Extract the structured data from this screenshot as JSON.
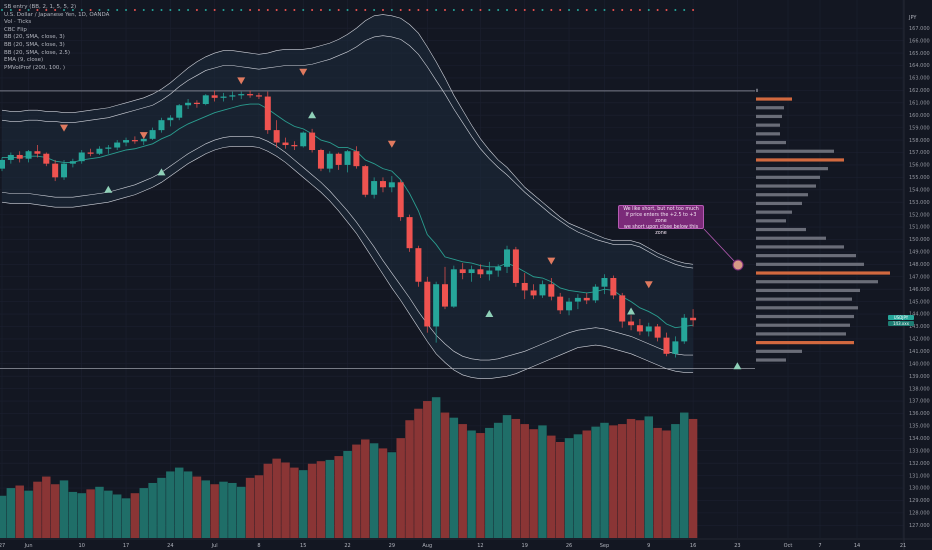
{
  "legend": {
    "line0": "SB entry (BB, 2, 1, 5, 5, 2)",
    "line1": "U.S. Dollar / Japanese Yen, 1D, OANDA",
    "line2": "Vol · Ticks",
    "line3": "CBC Flip",
    "line4": "BB (20, SMA, close, 3)",
    "line5": "BB (20, SMA, close, 3)",
    "line6": "BB (20, SMA, close, 2.5)",
    "line7": "EMA (9, close)",
    "line8": "PMVolProf (200, 100, )"
  },
  "annotation": {
    "line1": "We like short, but not too much",
    "line2": "If price enters the +2.5 to +3 zone",
    "line3": "we short upon close below this zone"
  },
  "axis": {
    "currency": "JPY",
    "y_ticks": [
      "167.000",
      "166.000",
      "165.000",
      "164.000",
      "163.000",
      "162.000",
      "161.000",
      "160.000",
      "159.000",
      "158.000",
      "157.000",
      "156.000",
      "155.000",
      "154.000",
      "153.000",
      "152.000",
      "151.000",
      "150.000",
      "149.000",
      "148.000",
      "147.000",
      "146.000",
      "145.000",
      "144.000",
      "143.000",
      "142.000",
      "141.000",
      "140.000",
      "139.000",
      "138.000",
      "137.000",
      "136.000",
      "135.000",
      "134.000",
      "133.000",
      "132.000",
      "131.000",
      "130.000",
      "129.000",
      "128.000",
      "127.000"
    ],
    "x_ticks": [
      {
        "label": "27",
        "i": 0
      },
      {
        "label": "Jun",
        "i": 3
      },
      {
        "label": "10",
        "i": 9
      },
      {
        "label": "17",
        "i": 14
      },
      {
        "label": "24",
        "i": 19
      },
      {
        "label": "Jul",
        "i": 24
      },
      {
        "label": "8",
        "i": 29
      },
      {
        "label": "15",
        "i": 34
      },
      {
        "label": "22",
        "i": 39
      },
      {
        "label": "29",
        "i": 44
      },
      {
        "label": "Aug",
        "i": 48
      },
      {
        "label": "12",
        "i": 54
      },
      {
        "label": "19",
        "i": 59
      },
      {
        "label": "26",
        "i": 64
      },
      {
        "label": "Sep",
        "i": 68
      },
      {
        "label": "9",
        "i": 73
      },
      {
        "label": "16",
        "i": 78
      },
      {
        "label": "23",
        "i": 83
      }
    ],
    "x_ticks_future": [
      "Oct",
      "7",
      "14",
      "21"
    ],
    "price_tag": "USDJPY",
    "price_value": "143.xxx"
  },
  "chart_data": {
    "type": "candlestick",
    "title": "U.S. Dollar / Japanese Yen, 1D, OANDA",
    "ylim": [
      126.3,
      167.5
    ],
    "colors": {
      "up": "#26a69a",
      "down": "#ef5350",
      "vol_up": "#1f6e68",
      "vol_down": "#8a3535",
      "band": "#d1d4dc",
      "ema": "#2a9d8f",
      "profile": "#6a6d78",
      "profile_hi": "#d2693f"
    },
    "candles": [
      [
        155.7,
        156.6,
        155.5,
        156.4
      ],
      [
        156.4,
        157.0,
        156.1,
        156.8
      ],
      [
        156.8,
        157.1,
        156.2,
        156.5
      ],
      [
        156.5,
        157.2,
        156.2,
        157.1
      ],
      [
        157.1,
        157.6,
        156.6,
        156.9
      ],
      [
        156.9,
        157.0,
        155.9,
        156.1
      ],
      [
        156.1,
        156.4,
        154.7,
        155.0
      ],
      [
        155.0,
        156.4,
        154.8,
        156.1
      ],
      [
        156.1,
        156.5,
        155.8,
        156.3
      ],
      [
        156.3,
        157.2,
        156.1,
        157.0
      ],
      [
        157.0,
        157.3,
        156.7,
        156.9
      ],
      [
        156.9,
        157.5,
        156.8,
        157.3
      ],
      [
        157.3,
        157.6,
        156.9,
        157.4
      ],
      [
        157.4,
        158.0,
        157.2,
        157.8
      ],
      [
        157.8,
        158.2,
        157.5,
        158.0
      ],
      [
        158.0,
        158.3,
        157.7,
        157.9
      ],
      [
        157.9,
        158.3,
        157.6,
        158.1
      ],
      [
        158.1,
        159.0,
        158.0,
        158.8
      ],
      [
        158.8,
        159.8,
        158.6,
        159.6
      ],
      [
        159.6,
        160.0,
        159.1,
        159.8
      ],
      [
        159.8,
        160.9,
        159.6,
        160.8
      ],
      [
        160.8,
        161.3,
        160.5,
        161.0
      ],
      [
        161.0,
        161.2,
        160.6,
        160.9
      ],
      [
        160.9,
        161.7,
        160.8,
        161.6
      ],
      [
        161.6,
        162.0,
        161.1,
        161.4
      ],
      [
        161.4,
        161.8,
        161.1,
        161.5
      ],
      [
        161.5,
        161.9,
        161.2,
        161.6
      ],
      [
        161.6,
        161.9,
        161.3,
        161.7
      ],
      [
        161.7,
        162.0,
        161.4,
        161.6
      ],
      [
        161.6,
        161.8,
        161.3,
        161.5
      ],
      [
        161.5,
        161.9,
        158.5,
        158.8
      ],
      [
        158.8,
        159.6,
        157.4,
        157.8
      ],
      [
        157.8,
        158.2,
        157.3,
        157.6
      ],
      [
        157.6,
        157.9,
        157.2,
        157.5
      ],
      [
        157.5,
        158.7,
        157.4,
        158.6
      ],
      [
        158.6,
        158.9,
        157.0,
        157.2
      ],
      [
        157.2,
        157.3,
        155.5,
        155.7
      ],
      [
        155.7,
        157.1,
        155.4,
        156.9
      ],
      [
        156.9,
        157.0,
        155.6,
        156.0
      ],
      [
        156.0,
        157.2,
        155.4,
        157.1
      ],
      [
        157.1,
        157.5,
        155.7,
        155.9
      ],
      [
        155.9,
        156.0,
        153.4,
        153.6
      ],
      [
        153.6,
        155.0,
        153.3,
        154.7
      ],
      [
        154.7,
        155.0,
        153.8,
        154.2
      ],
      [
        154.2,
        155.1,
        153.8,
        154.6
      ],
      [
        154.6,
        154.8,
        151.5,
        151.8
      ],
      [
        151.8,
        152.0,
        149.0,
        149.3
      ],
      [
        149.3,
        149.5,
        146.2,
        146.6
      ],
      [
        146.6,
        147.0,
        142.5,
        143.0
      ],
      [
        143.0,
        146.6,
        141.7,
        146.4
      ],
      [
        146.4,
        147.8,
        144.4,
        144.6
      ],
      [
        144.6,
        147.9,
        144.5,
        147.6
      ],
      [
        147.6,
        148.1,
        146.8,
        147.3
      ],
      [
        147.3,
        147.9,
        146.6,
        147.6
      ],
      [
        147.6,
        148.0,
        146.9,
        147.2
      ],
      [
        147.2,
        148.2,
        146.7,
        147.5
      ],
      [
        147.5,
        148.0,
        147.0,
        147.8
      ],
      [
        147.8,
        149.5,
        147.3,
        149.2
      ],
      [
        149.2,
        149.4,
        146.2,
        146.5
      ],
      [
        146.5,
        147.3,
        145.2,
        145.9
      ],
      [
        145.9,
        146.4,
        145.2,
        145.5
      ],
      [
        145.5,
        146.7,
        145.3,
        146.4
      ],
      [
        146.4,
        146.9,
        145.1,
        145.4
      ],
      [
        145.4,
        145.7,
        144.0,
        144.3
      ],
      [
        144.3,
        145.3,
        143.9,
        145.0
      ],
      [
        145.0,
        145.6,
        144.4,
        145.3
      ],
      [
        145.3,
        145.7,
        144.8,
        145.1
      ],
      [
        145.1,
        146.4,
        144.9,
        146.2
      ],
      [
        146.2,
        147.2,
        145.6,
        146.9
      ],
      [
        146.9,
        147.1,
        145.2,
        145.5
      ],
      [
        145.5,
        145.7,
        142.9,
        143.4
      ],
      [
        143.4,
        143.9,
        142.7,
        143.1
      ],
      [
        143.1,
        143.6,
        142.3,
        142.6
      ],
      [
        142.6,
        143.3,
        142.2,
        143.0
      ],
      [
        143.0,
        143.2,
        141.8,
        142.1
      ],
      [
        142.1,
        142.5,
        140.6,
        140.8
      ],
      [
        140.8,
        142.2,
        140.5,
        141.8
      ],
      [
        141.8,
        144.0,
        141.6,
        143.7
      ],
      [
        143.7,
        144.4,
        143.0,
        143.5
      ]
    ],
    "volumes": [
      66,
      78,
      82,
      74,
      88,
      96,
      84,
      90,
      72,
      70,
      76,
      80,
      74,
      68,
      62,
      70,
      78,
      86,
      94,
      104,
      110,
      104,
      96,
      90,
      84,
      88,
      86,
      80,
      94,
      98,
      116,
      124,
      118,
      110,
      106,
      116,
      120,
      122,
      128,
      136,
      146,
      154,
      148,
      140,
      134,
      156,
      184,
      202,
      214,
      220,
      196,
      188,
      178,
      168,
      164,
      172,
      180,
      192,
      186,
      178,
      170,
      176,
      160,
      150,
      156,
      162,
      168,
      174,
      180,
      176,
      178,
      186,
      184,
      190,
      172,
      168,
      178,
      196,
      186
    ],
    "ema": [
      156.6,
      156.6,
      156.6,
      156.7,
      156.7,
      156.6,
      156.3,
      156.2,
      156.2,
      156.4,
      156.5,
      156.6,
      156.8,
      157.0,
      157.2,
      157.3,
      157.5,
      157.7,
      158.1,
      158.4,
      158.9,
      159.3,
      159.6,
      159.9,
      160.2,
      160.4,
      160.6,
      160.8,
      160.9,
      160.9,
      160.5,
      160.0,
      159.5,
      159.1,
      158.9,
      158.5,
      158.0,
      157.8,
      157.4,
      157.4,
      157.1,
      156.4,
      156.1,
      155.7,
      155.5,
      154.8,
      153.7,
      152.3,
      150.4,
      149.6,
      148.6,
      148.4,
      148.2,
      148.1,
      147.9,
      147.8,
      147.8,
      148.1,
      147.8,
      147.4,
      147.0,
      146.9,
      146.6,
      146.1,
      145.9,
      145.8,
      145.7,
      145.8,
      146.0,
      145.9,
      145.4,
      145.0,
      144.5,
      144.2,
      143.8,
      143.2,
      142.9,
      143.0,
      143.1
    ],
    "bands": {
      "upper3": [
        160.4,
        160.3,
        160.3,
        160.4,
        160.4,
        160.3,
        160.3,
        160.2,
        160.2,
        160.3,
        160.4,
        160.5,
        160.6,
        160.8,
        161.0,
        161.2,
        161.4,
        161.7,
        162.1,
        162.6,
        163.2,
        163.8,
        164.3,
        164.7,
        165.0,
        165.2,
        165.2,
        165.1,
        165.0,
        164.9,
        165.0,
        165.2,
        165.3,
        165.3,
        165.3,
        165.4,
        165.6,
        165.8,
        166.1,
        166.5,
        167.0,
        167.6,
        168.0,
        168.1,
        168.0,
        167.8,
        167.3,
        166.6,
        165.5,
        164.3,
        163.0,
        161.6,
        160.4,
        159.2,
        158.1,
        157.2,
        156.4,
        155.8,
        155.0,
        154.2,
        153.6,
        153.0,
        152.4,
        151.8,
        151.3,
        151.0,
        150.7,
        150.4,
        150.1,
        149.9,
        149.9,
        149.9,
        149.7,
        149.3,
        148.9,
        148.6,
        148.3,
        148.1,
        148.0
      ],
      "upper25": [
        159.6,
        159.5,
        159.5,
        159.6,
        159.6,
        159.5,
        159.5,
        159.4,
        159.4,
        159.5,
        159.6,
        159.7,
        159.8,
        160.0,
        160.2,
        160.4,
        160.6,
        160.8,
        161.2,
        161.7,
        162.3,
        162.8,
        163.2,
        163.6,
        163.8,
        164.0,
        164.0,
        163.9,
        163.8,
        163.7,
        163.8,
        163.9,
        164.0,
        164.0,
        164.0,
        164.1,
        164.3,
        164.5,
        164.8,
        165.1,
        165.5,
        166.0,
        166.3,
        166.4,
        166.3,
        166.1,
        165.6,
        164.9,
        163.9,
        162.8,
        161.7,
        160.5,
        159.4,
        158.3,
        157.3,
        156.5,
        155.8,
        155.2,
        154.5,
        153.8,
        153.2,
        152.6,
        152.0,
        151.5,
        151.0,
        150.6,
        150.3,
        150.0,
        149.8,
        149.6,
        149.6,
        149.6,
        149.4,
        149.0,
        148.6,
        148.3,
        148.0,
        147.8,
        147.7
      ],
      "lower3": [
        153.0,
        152.9,
        152.9,
        152.9,
        152.8,
        152.7,
        152.6,
        152.6,
        152.6,
        152.7,
        152.8,
        152.9,
        153.0,
        153.2,
        153.4,
        153.6,
        153.9,
        154.2,
        154.6,
        155.1,
        155.6,
        156.1,
        156.5,
        156.9,
        157.2,
        157.4,
        157.5,
        157.5,
        157.5,
        157.4,
        157.1,
        156.7,
        156.2,
        155.6,
        155.0,
        154.4,
        153.8,
        153.1,
        152.3,
        151.4,
        150.5,
        149.4,
        148.3,
        147.2,
        146.1,
        145.1,
        144.0,
        142.9,
        141.8,
        140.8,
        140.1,
        139.5,
        139.1,
        138.9,
        138.8,
        138.8,
        138.9,
        139.0,
        139.2,
        139.5,
        139.8,
        140.1,
        140.4,
        140.7,
        141.0,
        141.3,
        141.4,
        141.5,
        141.4,
        141.2,
        141.0,
        140.8,
        140.5,
        140.2,
        139.9,
        139.6,
        139.4,
        139.3,
        139.3
      ],
      "lower25": [
        153.8,
        153.7,
        153.7,
        153.7,
        153.6,
        153.5,
        153.4,
        153.4,
        153.4,
        153.5,
        153.6,
        153.7,
        153.8,
        154.0,
        154.2,
        154.4,
        154.7,
        155.0,
        155.4,
        155.9,
        156.4,
        156.9,
        157.3,
        157.7,
        158.0,
        158.2,
        158.3,
        158.3,
        158.3,
        158.2,
        157.9,
        157.5,
        157.0,
        156.4,
        155.8,
        155.2,
        154.6,
        153.9,
        153.1,
        152.3,
        151.4,
        150.4,
        149.4,
        148.3,
        147.3,
        146.3,
        145.3,
        144.2,
        143.2,
        142.3,
        141.6,
        141.0,
        140.6,
        140.4,
        140.3,
        140.3,
        140.4,
        140.6,
        140.8,
        141.0,
        141.3,
        141.6,
        141.9,
        142.2,
        142.5,
        142.7,
        142.8,
        142.9,
        142.8,
        142.6,
        142.4,
        142.2,
        141.9,
        141.6,
        141.3,
        141.0,
        140.8,
        140.7,
        140.7
      ]
    },
    "signals_sell": [
      {
        "i": 7,
        "y": 159.0
      },
      {
        "i": 16,
        "y": 158.4
      },
      {
        "i": 27,
        "y": 162.8
      },
      {
        "i": 34,
        "y": 163.5
      },
      {
        "i": 44,
        "y": 157.7
      },
      {
        "i": 62,
        "y": 148.3
      },
      {
        "i": 73,
        "y": 146.4
      }
    ],
    "signals_buy": [
      {
        "i": 12,
        "y": 154.0
      },
      {
        "i": 18,
        "y": 155.4
      },
      {
        "i": 35,
        "y": 160.0
      },
      {
        "i": 55,
        "y": 144.0
      },
      {
        "i": 71,
        "y": 144.2
      },
      {
        "i": 83,
        "y": 139.8
      }
    ],
    "levels": [
      161.95,
      139.6
    ],
    "profile": [
      {
        "p": 162.0,
        "w": 2,
        "hi": false
      },
      {
        "p": 161.3,
        "w": 36,
        "hi": true
      },
      {
        "p": 160.6,
        "w": 28,
        "hi": false
      },
      {
        "p": 159.9,
        "w": 26,
        "hi": false
      },
      {
        "p": 159.2,
        "w": 24,
        "hi": false
      },
      {
        "p": 158.5,
        "w": 24,
        "hi": false
      },
      {
        "p": 157.8,
        "w": 30,
        "hi": false
      },
      {
        "p": 157.1,
        "w": 78,
        "hi": false
      },
      {
        "p": 156.4,
        "w": 88,
        "hi": true
      },
      {
        "p": 155.7,
        "w": 72,
        "hi": false
      },
      {
        "p": 155.0,
        "w": 64,
        "hi": false
      },
      {
        "p": 154.3,
        "w": 60,
        "hi": false
      },
      {
        "p": 153.6,
        "w": 52,
        "hi": false
      },
      {
        "p": 152.9,
        "w": 46,
        "hi": false
      },
      {
        "p": 152.2,
        "w": 36,
        "hi": false
      },
      {
        "p": 151.5,
        "w": 30,
        "hi": false
      },
      {
        "p": 150.8,
        "w": 50,
        "hi": false
      },
      {
        "p": 150.1,
        "w": 70,
        "hi": false
      },
      {
        "p": 149.4,
        "w": 88,
        "hi": false
      },
      {
        "p": 148.7,
        "w": 100,
        "hi": false
      },
      {
        "p": 148.0,
        "w": 108,
        "hi": false
      },
      {
        "p": 147.3,
        "w": 134,
        "hi": true
      },
      {
        "p": 146.6,
        "w": 122,
        "hi": false
      },
      {
        "p": 145.9,
        "w": 104,
        "hi": false
      },
      {
        "p": 145.2,
        "w": 96,
        "hi": false
      },
      {
        "p": 144.5,
        "w": 102,
        "hi": false
      },
      {
        "p": 143.8,
        "w": 98,
        "hi": false
      },
      {
        "p": 143.1,
        "w": 94,
        "hi": false
      },
      {
        "p": 142.4,
        "w": 90,
        "hi": false
      },
      {
        "p": 141.7,
        "w": 98,
        "hi": true
      },
      {
        "p": 141.0,
        "w": 46,
        "hi": false
      },
      {
        "p": 140.3,
        "w": 30,
        "hi": false
      }
    ]
  }
}
